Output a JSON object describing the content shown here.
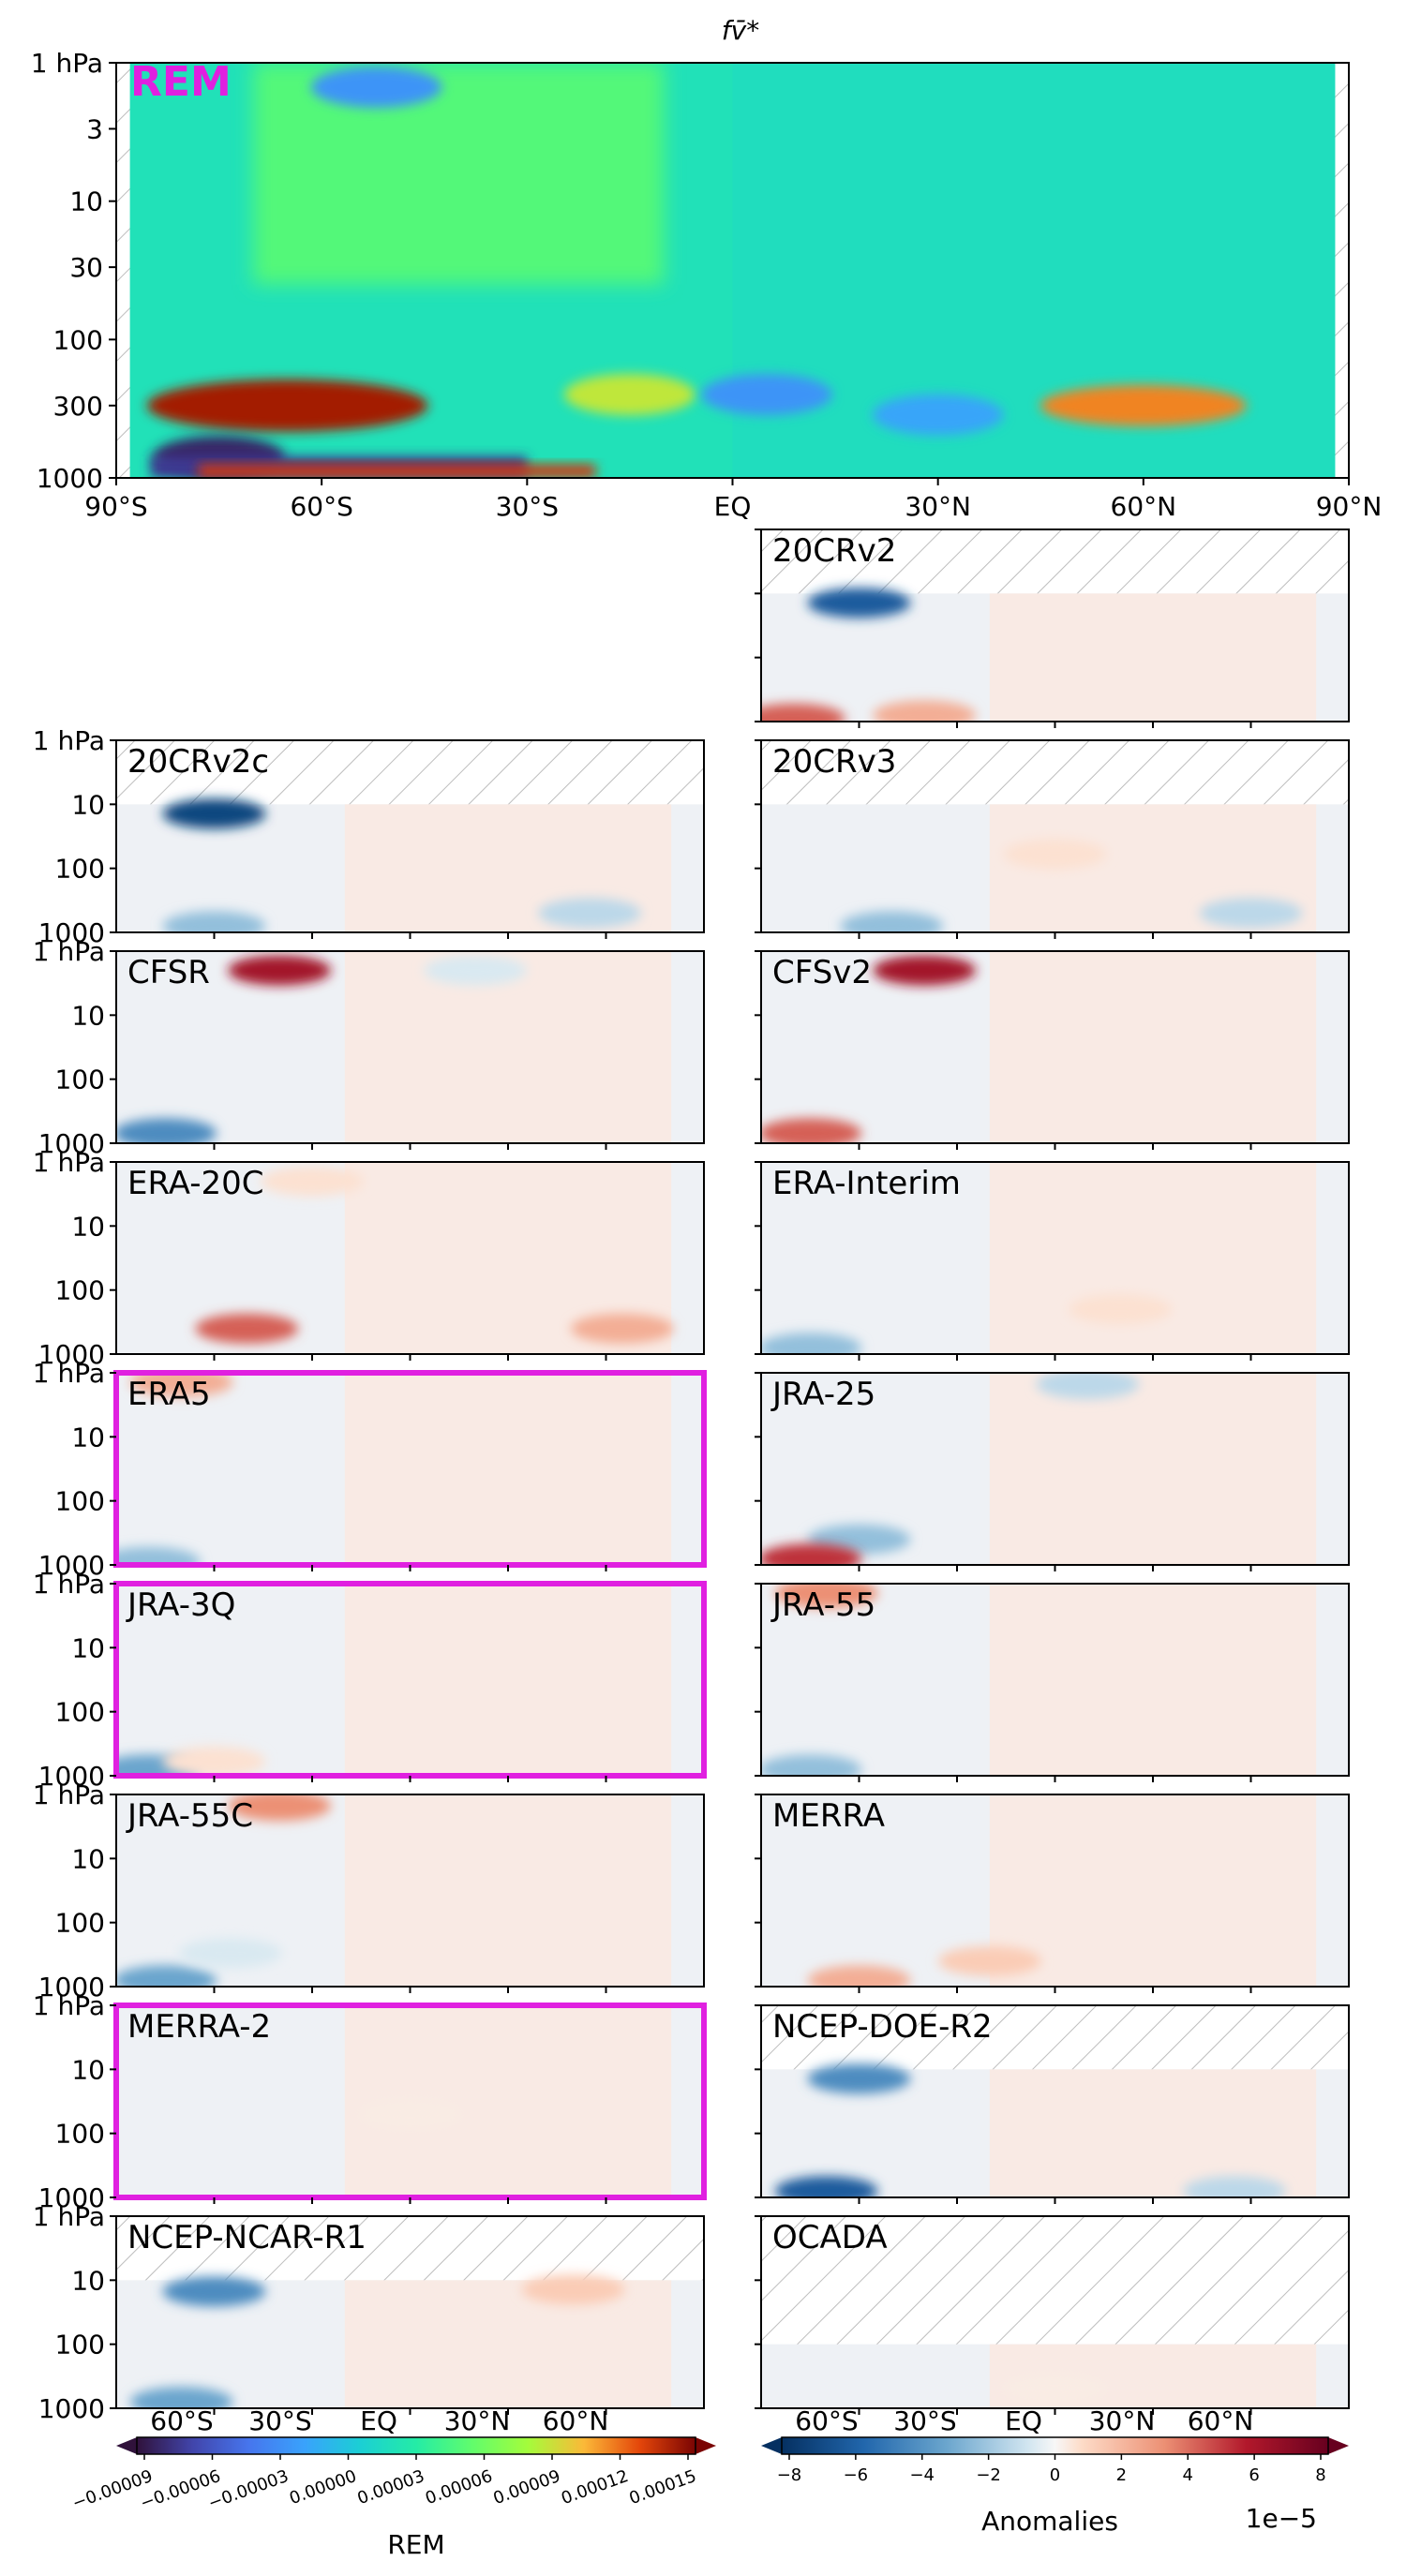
{
  "figure": {
    "title": "fv̄*",
    "rem_label": "REM",
    "highlight_color": "#e020e0"
  },
  "chart_data": [
    {
      "type": "heatmap",
      "panel": "REM",
      "title": "REM",
      "x_ticks": [
        "90°S",
        "60°S",
        "30°S",
        "EQ",
        "30°N",
        "60°N",
        "90°N"
      ],
      "y_ticks": [
        "1 hPa",
        "3",
        "10",
        "30",
        "100",
        "300",
        "1000"
      ],
      "ylabel": "",
      "xlim": [
        -90,
        90
      ],
      "ylim_hPa": [
        1000,
        1
      ],
      "y_scale": "log",
      "colormap": "turbo",
      "colorbar": {
        "label": "REM",
        "ticks": [
          "−0.00009",
          "−0.00006",
          "−0.00003",
          "0.00000",
          "0.00003",
          "0.00006",
          "0.00009",
          "0.00012",
          "0.00015"
        ]
      },
      "features": [
        {
          "lat": -52,
          "p": 1.5,
          "value": -3e-05
        },
        {
          "lat": -65,
          "p": 300,
          "value": 0.00015
        },
        {
          "lat": -75,
          "p": 700,
          "value": -9e-05
        },
        {
          "lat": -15,
          "p": 250,
          "value": 9e-05
        },
        {
          "lat": 5,
          "p": 250,
          "value": -3e-05
        },
        {
          "lat": 60,
          "p": 300,
          "value": 0.00012
        },
        {
          "lat": 30,
          "p": 350,
          "value": -2e-05
        }
      ]
    }
  ],
  "anomaly_panels": [
    {
      "name": "20CRv2",
      "top_hPa": 10,
      "highlighted": false,
      "features": [
        {
          "lat": -60,
          "p": 12,
          "v": -8
        },
        {
          "lat": -80,
          "p": 900,
          "v": 6
        },
        {
          "lat": -40,
          "p": 800,
          "v": 4
        }
      ]
    },
    {
      "name": "20CRv2c",
      "top_hPa": 10,
      "highlighted": false,
      "features": [
        {
          "lat": -60,
          "p": 12,
          "v": -9
        },
        {
          "lat": -60,
          "p": 800,
          "v": -4
        },
        {
          "lat": 55,
          "p": 500,
          "v": -3
        }
      ]
    },
    {
      "name": "20CRv3",
      "top_hPa": 10,
      "highlighted": false,
      "features": [
        {
          "lat": -50,
          "p": 800,
          "v": -4
        },
        {
          "lat": 60,
          "p": 500,
          "v": -3
        },
        {
          "lat": 0,
          "p": 60,
          "v": 2
        }
      ]
    },
    {
      "name": "CFSR",
      "top_hPa": 1,
      "highlighted": false,
      "features": [
        {
          "lat": -40,
          "p": 2,
          "v": 8
        },
        {
          "lat": -75,
          "p": 700,
          "v": -6
        },
        {
          "lat": 20,
          "p": 2,
          "v": -2
        }
      ]
    },
    {
      "name": "CFSv2",
      "top_hPa": 1,
      "highlighted": false,
      "features": [
        {
          "lat": -40,
          "p": 2,
          "v": 8
        },
        {
          "lat": -75,
          "p": 700,
          "v": 6
        }
      ]
    },
    {
      "name": "ERA-20C",
      "top_hPa": 1,
      "highlighted": false,
      "features": [
        {
          "lat": -50,
          "p": 400,
          "v": 6
        },
        {
          "lat": 65,
          "p": 400,
          "v": 4
        },
        {
          "lat": -30,
          "p": 2,
          "v": 2
        }
      ]
    },
    {
      "name": "ERA-Interim",
      "top_hPa": 1,
      "highlighted": false,
      "features": [
        {
          "lat": -75,
          "p": 800,
          "v": -4
        },
        {
          "lat": 20,
          "p": 200,
          "v": 2
        }
      ]
    },
    {
      "name": "ERA5",
      "top_hPa": 1,
      "highlighted": true,
      "features": [
        {
          "lat": -70,
          "p": 1.2,
          "v": 4
        },
        {
          "lat": -80,
          "p": 900,
          "v": -4
        }
      ]
    },
    {
      "name": "JRA-25",
      "top_hPa": 1,
      "highlighted": false,
      "features": [
        {
          "lat": 10,
          "p": 1.5,
          "v": -3
        },
        {
          "lat": -60,
          "p": 400,
          "v": -4
        },
        {
          "lat": -75,
          "p": 800,
          "v": 7
        }
      ]
    },
    {
      "name": "JRA-3Q",
      "top_hPa": 1,
      "highlighted": true,
      "features": [
        {
          "lat": -80,
          "p": 800,
          "v": -5
        },
        {
          "lat": -60,
          "p": 600,
          "v": 2
        }
      ]
    },
    {
      "name": "JRA-55",
      "top_hPa": 1,
      "highlighted": false,
      "features": [
        {
          "lat": -70,
          "p": 1.2,
          "v": 5
        },
        {
          "lat": -75,
          "p": 800,
          "v": -4
        }
      ]
    },
    {
      "name": "JRA-55C",
      "top_hPa": 1,
      "highlighted": false,
      "features": [
        {
          "lat": -40,
          "p": 1.5,
          "v": 5
        },
        {
          "lat": -75,
          "p": 800,
          "v": -5
        },
        {
          "lat": -55,
          "p": 300,
          "v": -2
        }
      ]
    },
    {
      "name": "MERRA",
      "top_hPa": 1,
      "highlighted": false,
      "features": [
        {
          "lat": -60,
          "p": 800,
          "v": 4
        },
        {
          "lat": -20,
          "p": 400,
          "v": 3
        }
      ]
    },
    {
      "name": "MERRA-2",
      "top_hPa": 1,
      "highlighted": true,
      "features": [
        {
          "lat": 0,
          "p": 50,
          "v": 1
        }
      ]
    },
    {
      "name": "NCEP-DOE-R2",
      "top_hPa": 10,
      "highlighted": false,
      "features": [
        {
          "lat": -60,
          "p": 12,
          "v": -6
        },
        {
          "lat": -70,
          "p": 800,
          "v": -8
        },
        {
          "lat": 55,
          "p": 800,
          "v": -3
        }
      ]
    },
    {
      "name": "NCEP-NCAR-R1",
      "top_hPa": 10,
      "highlighted": false,
      "features": [
        {
          "lat": -60,
          "p": 15,
          "v": -6
        },
        {
          "lat": 50,
          "p": 12,
          "v": 3
        },
        {
          "lat": -70,
          "p": 800,
          "v": -5
        }
      ]
    },
    {
      "name": "OCADA",
      "top_hPa": 100,
      "highlighted": false,
      "features": [
        {
          "lat": 0,
          "p": 500,
          "v": 1
        }
      ]
    }
  ],
  "anomaly_axis": {
    "y_ticks": [
      "1 hPa",
      "10",
      "100",
      "1000"
    ],
    "x_ticks": [
      "60°S",
      "30°S",
      "EQ",
      "30°N",
      "60°N"
    ]
  },
  "colorbars": {
    "rem": {
      "label": "REM",
      "x_ticks": [
        "60°S",
        "30°S",
        "EQ",
        "30°N",
        "60°N"
      ],
      "ticks": [
        "−0.00009",
        "−0.00006",
        "−0.00003",
        "0.00000",
        "0.00003",
        "0.00006",
        "0.00009",
        "0.00012",
        "0.00015"
      ]
    },
    "anomaly": {
      "label": "Anomalies",
      "scale": "1e−5",
      "x_ticks": [
        "60°S",
        "30°S",
        "EQ",
        "30°N",
        "60°N"
      ],
      "ticks": [
        "−8",
        "−6",
        "−4",
        "−2",
        "0",
        "2",
        "4",
        "6",
        "8"
      ]
    }
  }
}
